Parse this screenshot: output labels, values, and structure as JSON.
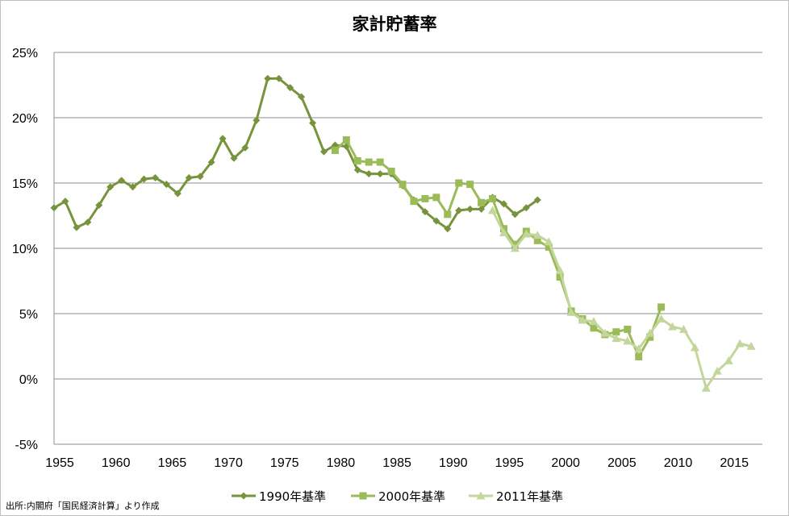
{
  "chart_data": {
    "type": "line",
    "title": "家計貯蓄率",
    "source_note": "出所:内閣府「国民経済計算」より作成",
    "xlabel": "",
    "ylabel": "",
    "xlim": [
      1955,
      2018
    ],
    "ylim": [
      -5,
      25
    ],
    "x_ticks": [
      1955,
      1960,
      1965,
      1970,
      1975,
      1980,
      1985,
      1990,
      1995,
      2000,
      2005,
      2010,
      2015
    ],
    "x_tick_labels": [
      "1955",
      "1960",
      "1965",
      "1970",
      "1975",
      "1980",
      "1985",
      "1990",
      "1995",
      "2000",
      "2005",
      "2010",
      "2015"
    ],
    "y_ticks": [
      -5,
      0,
      5,
      10,
      15,
      20,
      25
    ],
    "y_tick_labels": [
      "-5%",
      "0%",
      "5%",
      "10%",
      "15%",
      "20%",
      "25%"
    ],
    "grid": "horizontal",
    "legend_position": "bottom",
    "series": [
      {
        "name": "1990年基準",
        "marker": "diamond",
        "color": "#77933c",
        "x": [
          1955,
          1956,
          1957,
          1958,
          1959,
          1960,
          1961,
          1962,
          1963,
          1964,
          1965,
          1966,
          1967,
          1968,
          1969,
          1970,
          1971,
          1972,
          1973,
          1974,
          1975,
          1976,
          1977,
          1978,
          1979,
          1980,
          1981,
          1982,
          1983,
          1984,
          1985,
          1986,
          1987,
          1988,
          1989,
          1990,
          1991,
          1992,
          1993,
          1994,
          1995,
          1996,
          1997,
          1998
        ],
        "y": [
          13.1,
          13.6,
          11.6,
          12.0,
          13.3,
          14.7,
          15.2,
          14.7,
          15.3,
          15.4,
          14.9,
          14.2,
          15.4,
          15.5,
          16.6,
          18.4,
          16.9,
          17.7,
          19.8,
          23.0,
          23.0,
          22.3,
          21.6,
          19.6,
          17.4,
          17.9,
          17.8,
          16.0,
          15.7,
          15.7,
          15.7,
          14.8,
          13.7,
          12.8,
          12.1,
          11.5,
          12.9,
          13.0,
          13.0,
          13.9,
          13.4,
          12.6,
          13.1,
          13.7
        ]
      },
      {
        "name": "2000年基準",
        "marker": "square",
        "color": "#9bbb59",
        "x": [
          1980,
          1981,
          1982,
          1983,
          1984,
          1985,
          1986,
          1987,
          1988,
          1989,
          1990,
          1991,
          1992,
          1993,
          1994,
          1995,
          1996,
          1997,
          1998,
          1999,
          2000,
          2001,
          2002,
          2003,
          2004,
          2005,
          2006,
          2007,
          2008,
          2009
        ],
        "y": [
          17.5,
          18.3,
          16.7,
          16.6,
          16.6,
          15.9,
          14.9,
          13.6,
          13.8,
          13.9,
          12.6,
          15.0,
          14.9,
          13.5,
          13.8,
          11.5,
          10.3,
          11.3,
          10.6,
          10.1,
          7.8,
          5.2,
          4.6,
          3.9,
          3.4,
          3.6,
          3.8,
          1.7,
          3.2,
          5.5
        ]
      },
      {
        "name": "2011年基準",
        "marker": "triangle",
        "color": "#c3d69b",
        "x": [
          1994,
          1995,
          1996,
          1997,
          1998,
          1999,
          2000,
          2001,
          2002,
          2003,
          2004,
          2005,
          2006,
          2007,
          2008,
          2009,
          2010,
          2011,
          2012,
          2013,
          2014,
          2015,
          2016,
          2017
        ],
        "y": [
          12.9,
          11.2,
          10.0,
          11.1,
          11.0,
          10.5,
          8.3,
          5.1,
          4.5,
          4.4,
          3.5,
          3.1,
          2.9,
          2.3,
          3.5,
          4.6,
          4.0,
          3.8,
          2.4,
          -0.7,
          0.6,
          1.4,
          2.7,
          2.5
        ]
      }
    ]
  }
}
